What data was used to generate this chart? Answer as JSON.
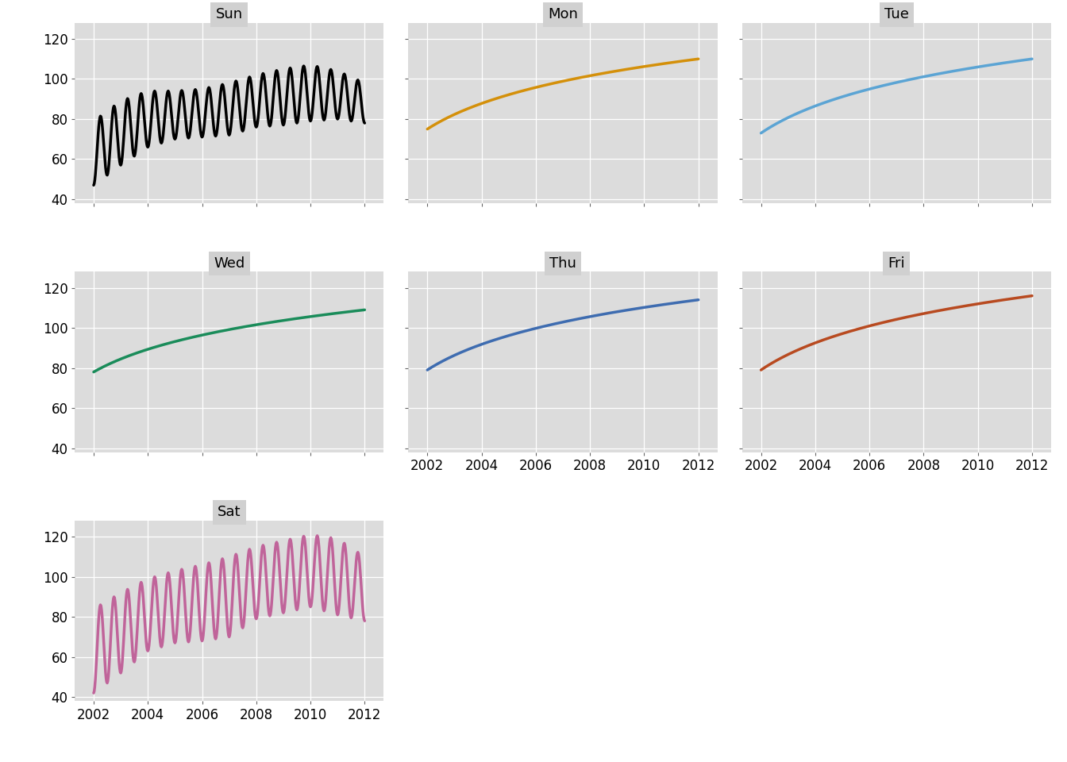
{
  "days": [
    "Sun",
    "Mon",
    "Tue",
    "Wed",
    "Thu",
    "Fri",
    "Sat"
  ],
  "colors": {
    "Sun": "#000000",
    "Mon": "#D4900A",
    "Tue": "#5BA4D4",
    "Wed": "#1A8C5A",
    "Thu": "#3E6CB0",
    "Fri": "#B84A20",
    "Sat": "#C0649A"
  },
  "line_width": 2.5,
  "ylim": [
    38,
    128
  ],
  "yticks": [
    40,
    60,
    80,
    100,
    120
  ],
  "xlim": [
    2001.3,
    2012.7
  ],
  "xticks": [
    2002,
    2004,
    2006,
    2008,
    2010,
    2012
  ],
  "panel_bg": "#DCDCDC",
  "figure_bg": "#FFFFFF",
  "grid_color": "#C8C8C8",
  "strip_bg": "#D0D0D0",
  "font_size": 12,
  "strip_font_size": 13
}
